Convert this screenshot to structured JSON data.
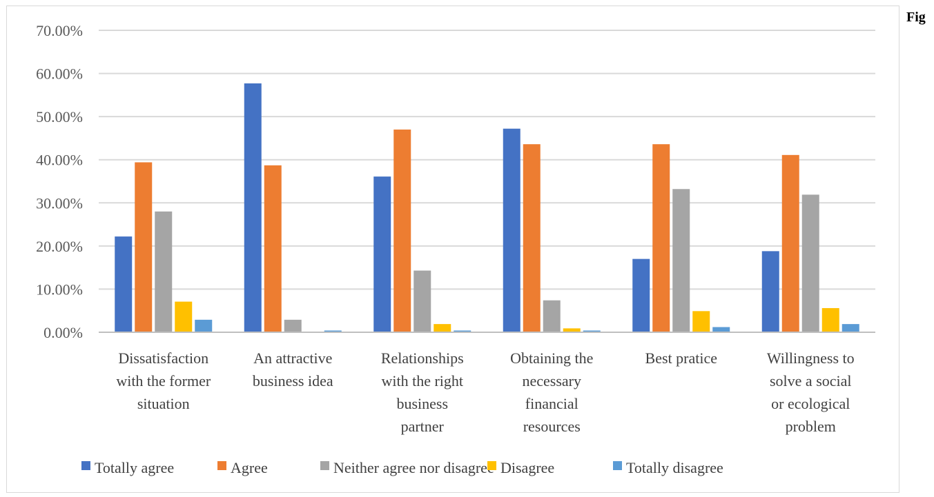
{
  "side_label": "Fig",
  "colors": {
    "gridline": "#d9d9d9",
    "axis": "#bfbfbf",
    "frame": "#d9d9d9"
  },
  "chart_data": {
    "type": "bar",
    "categories": [
      [
        "Dissatisfaction",
        "with the former",
        "situation"
      ],
      [
        "An attractive",
        "business idea"
      ],
      [
        "Relationships",
        "with the right",
        "business",
        "partner"
      ],
      [
        "Obtaining the",
        "necessary",
        "financial",
        "resources"
      ],
      [
        "Best pratice"
      ],
      [
        "Willingness to",
        "solve a social",
        "or ecological",
        "problem"
      ]
    ],
    "series": [
      {
        "name": "Totally agree",
        "color": "#4472c4",
        "values": [
          22.2,
          57.7,
          36.1,
          47.2,
          17.0,
          18.8
        ]
      },
      {
        "name": "Agree",
        "color": "#ed7d31",
        "values": [
          39.4,
          38.7,
          47.0,
          43.6,
          43.6,
          41.1
        ]
      },
      {
        "name": "Neither agree nor disagree",
        "color": "#a5a5a5",
        "values": [
          28.0,
          2.9,
          14.3,
          7.4,
          33.2,
          31.9
        ]
      },
      {
        "name": "Disagree",
        "color": "#ffc000",
        "values": [
          7.1,
          0.0,
          1.9,
          0.9,
          4.9,
          5.6
        ]
      },
      {
        "name": "Totally disagree",
        "color": "#5b9bd5",
        "values": [
          2.9,
          0.4,
          0.4,
          0.4,
          1.2,
          1.9
        ]
      }
    ],
    "yticks": [
      "0.00%",
      "10.00%",
      "20.00%",
      "30.00%",
      "40.00%",
      "50.00%",
      "60.00%",
      "70.00%"
    ],
    "ylim": [
      0,
      70
    ],
    "grid": true,
    "legend_position": "bottom"
  }
}
